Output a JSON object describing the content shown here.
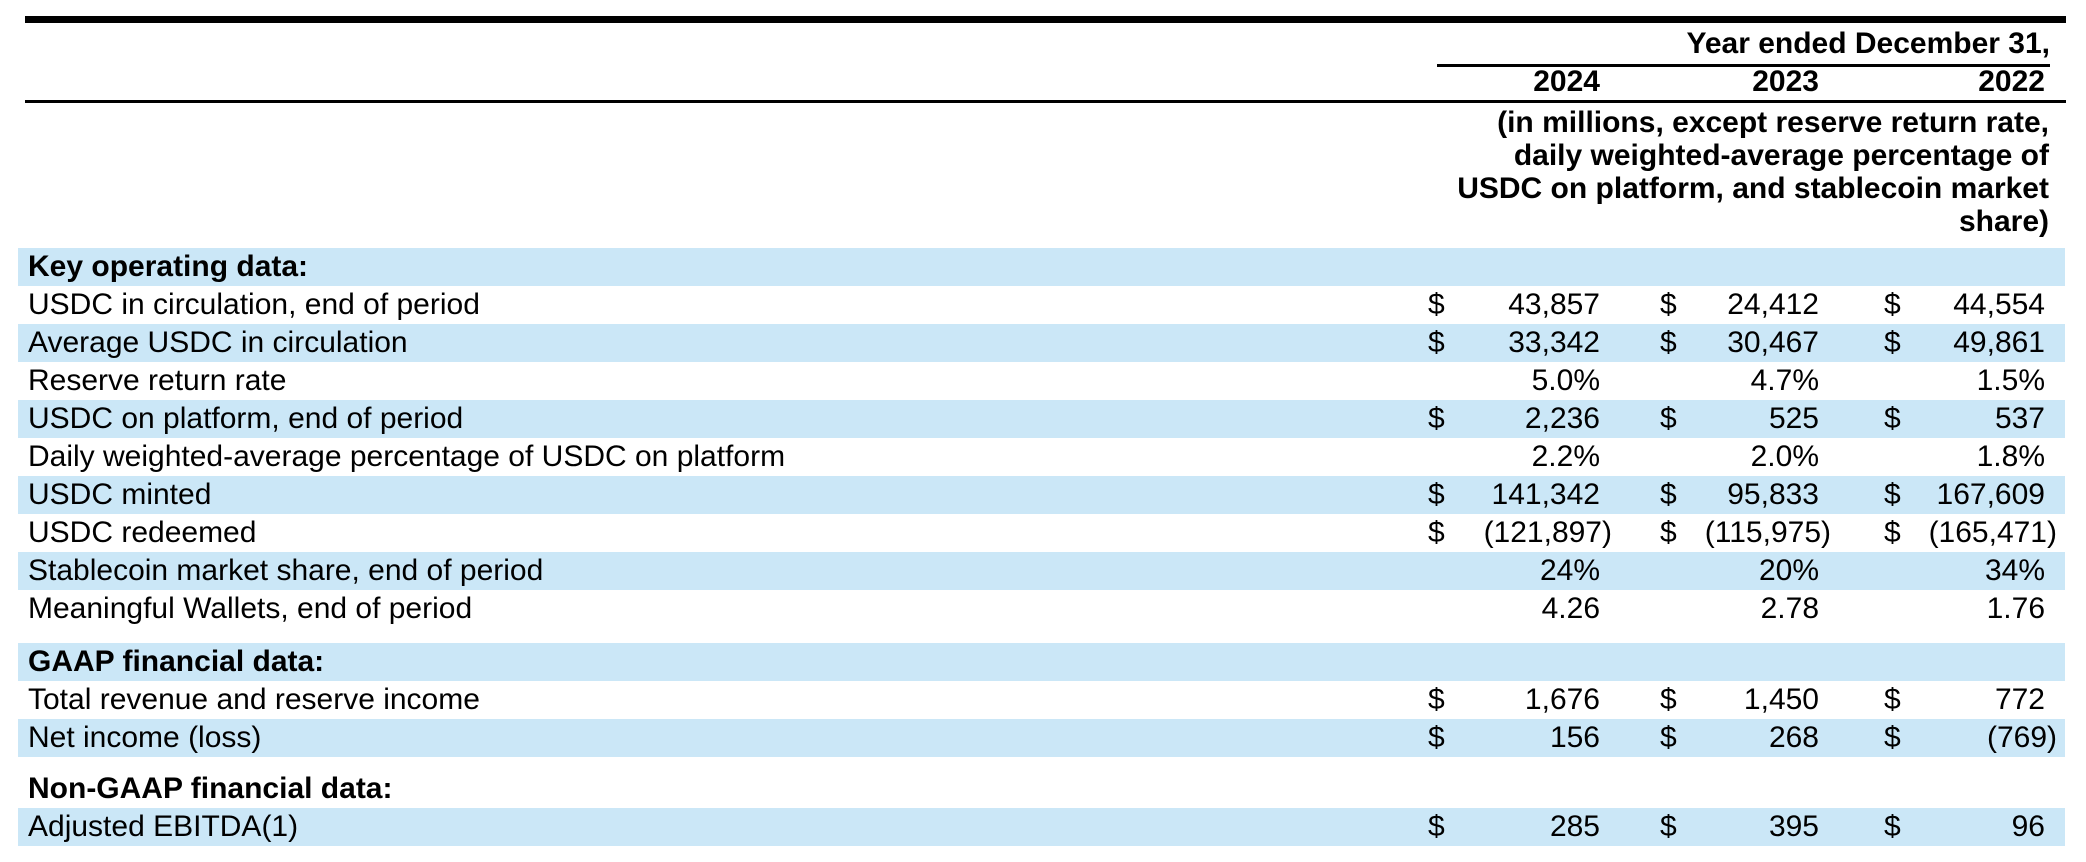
{
  "colors": {
    "row_highlight": "#cbe7f7",
    "rule": "#000000",
    "text": "#000000"
  },
  "table": {
    "period_label": "Year ended December 31,",
    "years": [
      "2024",
      "2023",
      "2022"
    ],
    "units_note": [
      "(in millions, except reserve return rate,",
      "daily weighted-average percentage of",
      "USDC on platform, and stablecoin market",
      "share)"
    ],
    "rows": [
      {
        "type": "section",
        "label": "Key operating data:"
      },
      {
        "type": "data",
        "label": "USDC in circulation, end of period",
        "cells": [
          {
            "currency": "$",
            "value": "43,857"
          },
          {
            "currency": "$",
            "value": "24,412"
          },
          {
            "currency": "$",
            "value": "44,554"
          }
        ]
      },
      {
        "type": "data",
        "label": "Average USDC in circulation",
        "cells": [
          {
            "currency": "$",
            "value": "33,342"
          },
          {
            "currency": "$",
            "value": "30,467"
          },
          {
            "currency": "$",
            "value": "49,861"
          }
        ]
      },
      {
        "type": "data",
        "label": "Reserve return rate",
        "cells": [
          {
            "value": "5.0%"
          },
          {
            "value": "4.7%"
          },
          {
            "value": "1.5%"
          }
        ]
      },
      {
        "type": "data",
        "label": "USDC on platform, end of period",
        "cells": [
          {
            "currency": "$",
            "value": "2,236"
          },
          {
            "currency": "$",
            "value": "525"
          },
          {
            "currency": "$",
            "value": "537"
          }
        ]
      },
      {
        "type": "data",
        "label": "Daily weighted-average percentage of USDC on platform",
        "cells": [
          {
            "value": "2.2%"
          },
          {
            "value": "2.0%"
          },
          {
            "value": "1.8%"
          }
        ]
      },
      {
        "type": "data",
        "label": "USDC minted",
        "cells": [
          {
            "currency": "$",
            "value": "141,342"
          },
          {
            "currency": "$",
            "value": "95,833"
          },
          {
            "currency": "$",
            "value": "167,609"
          }
        ]
      },
      {
        "type": "data",
        "label": "USDC redeemed",
        "cells": [
          {
            "currency": "$",
            "value": "(121,897)"
          },
          {
            "currency": "$",
            "value": "(115,975)"
          },
          {
            "currency": "$",
            "value": "(165,471)"
          }
        ]
      },
      {
        "type": "data",
        "label": "Stablecoin market share, end of period",
        "cells": [
          {
            "value": "24%"
          },
          {
            "value": "20%"
          },
          {
            "value": "34%"
          }
        ]
      },
      {
        "type": "data",
        "label": "Meaningful Wallets, end of period",
        "cells": [
          {
            "value": "4.26"
          },
          {
            "value": "2.78"
          },
          {
            "value": "1.76"
          }
        ]
      },
      {
        "type": "section",
        "label": "GAAP financial data:"
      },
      {
        "type": "data",
        "label": "Total revenue and reserve income",
        "cells": [
          {
            "currency": "$",
            "value": "1,676"
          },
          {
            "currency": "$",
            "value": "1,450"
          },
          {
            "currency": "$",
            "value": "772"
          }
        ]
      },
      {
        "type": "data",
        "label": "Net income (loss)",
        "cells": [
          {
            "currency": "$",
            "value": "156"
          },
          {
            "currency": "$",
            "value": "268"
          },
          {
            "currency": "$",
            "value": "(769)"
          }
        ]
      },
      {
        "type": "section",
        "label": "Non-GAAP financial data:"
      },
      {
        "type": "data",
        "label": "Adjusted EBITDA(1)",
        "cells": [
          {
            "currency": "$",
            "value": "285"
          },
          {
            "currency": "$",
            "value": "395"
          },
          {
            "currency": "$",
            "value": "96"
          }
        ]
      }
    ]
  }
}
